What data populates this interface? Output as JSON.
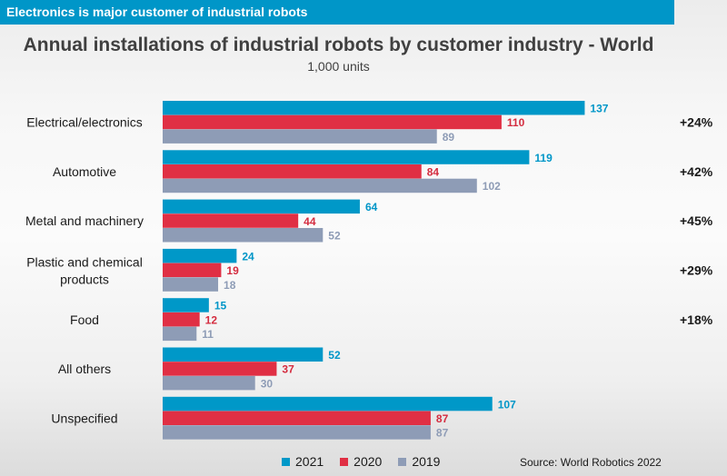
{
  "banner": "Electronics is major customer of industrial robots",
  "chart_data": {
    "type": "bar",
    "orientation": "horizontal",
    "title": "Annual installations of industrial robots by customer industry - World",
    "subtitle": "1,000 units",
    "categories": [
      "Electrical/electronics",
      "Automotive",
      "Metal and machinery",
      "Plastic and chemical products",
      "Food",
      "All others",
      "Unspecified"
    ],
    "series": [
      {
        "name": "2021",
        "color": "#0098c8",
        "values": [
          137,
          119,
          64,
          24,
          15,
          52,
          107
        ]
      },
      {
        "name": "2020",
        "color": "#e02f44",
        "values": [
          110,
          84,
          44,
          19,
          12,
          37,
          87
        ]
      },
      {
        "name": "2019",
        "color": "#8e9cb6",
        "values": [
          89,
          102,
          52,
          18,
          11,
          30,
          87
        ]
      }
    ],
    "growth": [
      "+24%",
      "+42%",
      "+45%",
      "+29%",
      "+18%",
      "",
      ""
    ],
    "xlim": [
      0,
      160
    ],
    "legend": "bottom",
    "source": "Source: World Robotics 2022"
  }
}
